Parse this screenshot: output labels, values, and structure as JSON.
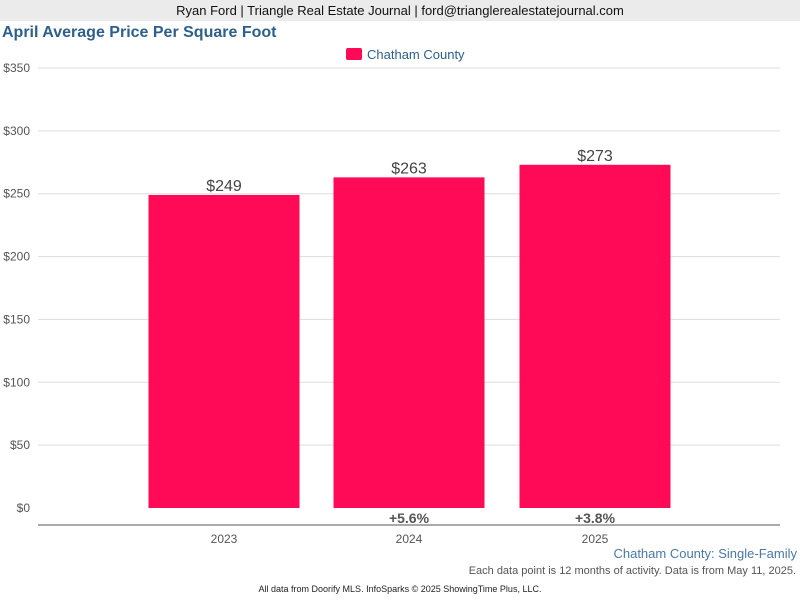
{
  "header": {
    "byline": "Ryan Ford | Triangle Real Estate Journal | ford@trianglerealestatejournal.com"
  },
  "chart_data": {
    "type": "bar",
    "title": "April Average Price Per Square Foot",
    "categories": [
      "2023",
      "2024",
      "2025"
    ],
    "series": [
      {
        "name": "Chatham County",
        "values": [
          249,
          263,
          273
        ],
        "color": "#ff0a56"
      }
    ],
    "data_labels": [
      "$249",
      "$263",
      "$273"
    ],
    "change_labels": [
      "",
      "+5.6%",
      "+3.8%"
    ],
    "y_ticks": [
      "$0",
      "$50",
      "$100",
      "$150",
      "$200",
      "$250",
      "$300",
      "$350"
    ],
    "ylim": [
      0,
      350
    ],
    "grid": true,
    "legend": "top-center"
  },
  "subtitle": "Chatham County: Single-Family",
  "note": "Each data point is 12 months of activity. Data is from May 11, 2025.",
  "footer": "All data from Doorify MLS. InfoSparks © 2025 ShowingTime Plus, LLC."
}
